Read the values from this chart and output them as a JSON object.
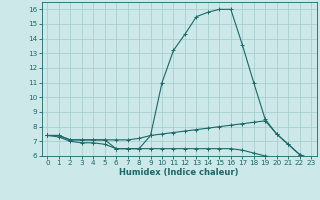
{
  "bg_color": "#cce8e8",
  "grid_color": "#aacece",
  "line_color": "#1a6868",
  "xlabel": "Humidex (Indice chaleur)",
  "xlim": [
    -0.5,
    23.5
  ],
  "ylim": [
    6.0,
    16.5
  ],
  "yticks": [
    6,
    7,
    8,
    9,
    10,
    11,
    12,
    13,
    14,
    15,
    16
  ],
  "xticks": [
    0,
    1,
    2,
    3,
    4,
    5,
    6,
    7,
    8,
    9,
    10,
    11,
    12,
    13,
    14,
    15,
    16,
    17,
    18,
    19,
    20,
    21,
    22,
    23
  ],
  "series1_x": [
    0,
    1,
    2,
    3,
    4,
    5,
    6,
    7,
    8,
    9,
    10,
    11,
    12,
    13,
    14,
    15,
    16,
    17,
    18,
    19,
    20,
    21,
    22,
    23
  ],
  "series1_y": [
    7.4,
    7.4,
    7.1,
    7.1,
    7.1,
    7.1,
    6.5,
    6.5,
    6.5,
    7.4,
    11.0,
    13.2,
    14.3,
    15.5,
    15.8,
    16.0,
    16.0,
    13.6,
    11.0,
    8.5,
    7.5,
    6.8,
    6.1,
    5.8
  ],
  "series2_x": [
    0,
    1,
    2,
    3,
    4,
    5,
    6,
    7,
    8,
    9,
    10,
    11,
    12,
    13,
    14,
    15,
    16,
    17,
    18,
    19,
    20,
    21,
    22,
    23
  ],
  "series2_y": [
    7.4,
    7.4,
    7.1,
    7.1,
    7.1,
    7.1,
    7.1,
    7.1,
    7.2,
    7.4,
    7.5,
    7.6,
    7.7,
    7.8,
    7.9,
    8.0,
    8.1,
    8.2,
    8.3,
    8.4,
    7.5,
    6.8,
    6.1,
    5.8
  ],
  "series3_x": [
    0,
    1,
    2,
    3,
    4,
    5,
    6,
    7,
    8,
    9,
    10,
    11,
    12,
    13,
    14,
    15,
    16,
    17,
    18,
    19,
    20,
    21,
    22,
    23
  ],
  "series3_y": [
    7.4,
    7.3,
    7.0,
    6.9,
    6.9,
    6.8,
    6.5,
    6.5,
    6.5,
    6.5,
    6.5,
    6.5,
    6.5,
    6.5,
    6.5,
    6.5,
    6.5,
    6.4,
    6.2,
    6.0,
    5.9,
    5.8,
    5.7,
    5.6
  ],
  "xlabel_fontsize": 6.0,
  "tick_fontsize": 5.2,
  "lw": 0.8,
  "ms": 2.2
}
